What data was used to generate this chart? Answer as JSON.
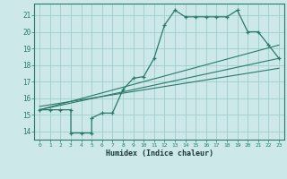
{
  "xlabel": "Humidex (Indice chaleur)",
  "xlim": [
    -0.5,
    23.5
  ],
  "ylim": [
    13.5,
    21.7
  ],
  "xticks": [
    0,
    1,
    2,
    3,
    4,
    5,
    6,
    7,
    8,
    9,
    10,
    11,
    12,
    13,
    14,
    15,
    16,
    17,
    18,
    19,
    20,
    21,
    22,
    23
  ],
  "yticks": [
    14,
    15,
    16,
    17,
    18,
    19,
    20,
    21
  ],
  "bg_color": "#cce8e8",
  "line_color": "#2a7a6a",
  "grid_color": "#a0cccc",
  "main_x": [
    0,
    1,
    2,
    3,
    3,
    4,
    5,
    5,
    6,
    7,
    8,
    9,
    10,
    11,
    12,
    13,
    14,
    15,
    16,
    17,
    18,
    19,
    20,
    21,
    22,
    23
  ],
  "main_y": [
    15.3,
    15.3,
    15.3,
    15.3,
    13.9,
    13.9,
    13.9,
    14.8,
    15.1,
    15.1,
    16.5,
    17.2,
    17.3,
    18.4,
    20.4,
    21.3,
    20.9,
    20.9,
    20.9,
    20.9,
    20.9,
    21.3,
    20.0,
    20.0,
    19.2,
    18.4
  ],
  "ref_line1_x": [
    0,
    23
  ],
  "ref_line1_y": [
    15.3,
    19.2
  ],
  "ref_line2_x": [
    0,
    23
  ],
  "ref_line2_y": [
    15.3,
    18.4
  ],
  "ref_line3_x": [
    0,
    23
  ],
  "ref_line3_y": [
    15.5,
    17.8
  ]
}
